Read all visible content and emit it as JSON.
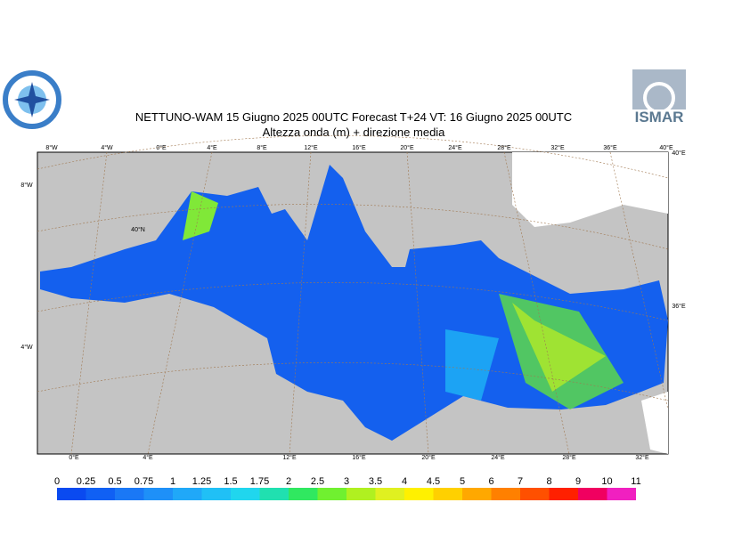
{
  "header": {
    "title": "NETTUNO-WAM  15   Giugno  2025 00UTC Forecast T+24 VT: 16   Giugno  2025 00UTC",
    "subtitle": "Altezza onda (m) + direzione media",
    "logo_text": "ISMAR"
  },
  "map": {
    "top_labels": [
      "8°W",
      "4°W",
      "0°E",
      "4°E",
      "8°E",
      "12°E",
      "16°E",
      "20°E",
      "24°E",
      "28°E",
      "32°E",
      "36°E",
      "40°E"
    ],
    "bottom_labels": [
      "0°E",
      "4°E",
      "12°E",
      "16°E",
      "20°E",
      "24°E",
      "28°E",
      "32°E"
    ],
    "left_labels": [
      "8°W",
      "40°N",
      "4°W"
    ],
    "right_labels": [
      "40°E",
      "36°E"
    ]
  },
  "colorbar": {
    "labels": [
      "0",
      "0.25",
      "0.5",
      "0.75",
      "1",
      "1.25",
      "1.5",
      "1.75",
      "2",
      "2.5",
      "3",
      "3.5",
      "4",
      "4.5",
      "5",
      "6",
      "7",
      "8",
      "9",
      "10",
      "11"
    ],
    "colors": [
      "#0a4af0",
      "#1060f4",
      "#1a78f6",
      "#1e90f8",
      "#20a8f8",
      "#20c0f6",
      "#20d6ee",
      "#20e0b0",
      "#30e860",
      "#70f030",
      "#b0f020",
      "#e0f020",
      "#fff000",
      "#ffd000",
      "#ffa800",
      "#ff8000",
      "#ff5000",
      "#ff2000",
      "#f00060",
      "#f020c0"
    ]
  }
}
